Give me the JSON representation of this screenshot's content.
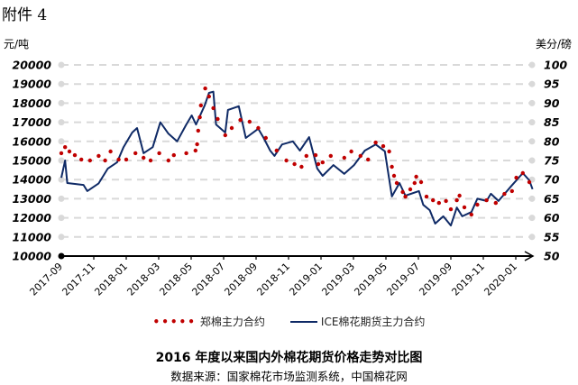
{
  "header": {
    "attachment": "附件 4"
  },
  "chart_data": {
    "type": "line",
    "title": "2016 年度以来国内外棉花期货价格走势对比图",
    "source": "数据来源：国家棉花市场监测系统，中国棉花网",
    "left_axis": {
      "unit": "元/吨",
      "range": [
        10000,
        20000
      ],
      "ticks": [
        "10000",
        "11000",
        "12000",
        "13000",
        "14000",
        "15000",
        "16000",
        "17000",
        "18000",
        "19000",
        "20000"
      ]
    },
    "right_axis": {
      "unit": "美分/磅",
      "range": [
        50,
        100
      ],
      "ticks": [
        "50",
        "55",
        "60",
        "65",
        "70",
        "75",
        "80",
        "85",
        "90",
        "95",
        "100"
      ]
    },
    "x_ticks": [
      "2017-09",
      "2017-11",
      "2018-01",
      "2018-03",
      "2018-05",
      "2018-07",
      "2018-09",
      "2018-11",
      "2019-01",
      "2019-03",
      "2019-05",
      "2019-07",
      "2019-09",
      "2019-11",
      "2020-01"
    ],
    "grid": true,
    "legend_position": "bottom",
    "series": [
      {
        "name": "郑棉主力合约",
        "axis": "left",
        "style": "dots",
        "color": "#c00000",
        "points": [
          [
            "2017-09-01",
            15380
          ],
          [
            "2017-09-08",
            15700
          ],
          [
            "2017-09-16",
            15470
          ],
          [
            "2017-09-26",
            15280
          ],
          [
            "2017-10-08",
            15050
          ],
          [
            "2017-10-24",
            15000
          ],
          [
            "2017-11-10",
            15240
          ],
          [
            "2017-11-22",
            15000
          ],
          [
            "2017-12-02",
            15470
          ],
          [
            "2017-12-17",
            15050
          ],
          [
            "2018-01-01",
            15050
          ],
          [
            "2018-01-18",
            15380
          ],
          [
            "2018-02-03",
            15140
          ],
          [
            "2018-02-16",
            15000
          ],
          [
            "2018-03-02",
            15380
          ],
          [
            "2018-03-19",
            15000
          ],
          [
            "2018-03-29",
            15280
          ],
          [
            "2018-04-22",
            15380
          ],
          [
            "2018-05-09",
            15520
          ],
          [
            "2018-05-12",
            15850
          ],
          [
            "2018-05-14",
            16560
          ],
          [
            "2018-05-17",
            17260
          ],
          [
            "2018-05-19",
            17880
          ],
          [
            "2018-05-27",
            18770
          ],
          [
            "2018-06-04",
            18350
          ],
          [
            "2018-06-12",
            17740
          ],
          [
            "2018-06-20",
            17170
          ],
          [
            "2018-07-04",
            16320
          ],
          [
            "2018-07-16",
            16700
          ],
          [
            "2018-08-02",
            17120
          ],
          [
            "2018-08-19",
            17030
          ],
          [
            "2018-09-05",
            16700
          ],
          [
            "2018-09-19",
            16180
          ],
          [
            "2018-10-09",
            15520
          ],
          [
            "2018-10-27",
            15000
          ],
          [
            "2018-11-12",
            14810
          ],
          [
            "2018-11-25",
            14670
          ],
          [
            "2018-12-04",
            15240
          ],
          [
            "2018-12-21",
            15280
          ],
          [
            "2018-12-26",
            14810
          ],
          [
            "2019-01-04",
            14900
          ],
          [
            "2019-01-19",
            15240
          ],
          [
            "2019-02-14",
            15140
          ],
          [
            "2019-02-27",
            15470
          ],
          [
            "2019-03-14",
            15240
          ],
          [
            "2019-03-28",
            15050
          ],
          [
            "2019-04-12",
            15940
          ],
          [
            "2019-04-26",
            15750
          ],
          [
            "2019-05-07",
            15470
          ],
          [
            "2019-05-12",
            14670
          ],
          [
            "2019-05-16",
            14200
          ],
          [
            "2019-05-21",
            13820
          ],
          [
            "2019-06-02",
            13350
          ],
          [
            "2019-06-07",
            13110
          ],
          [
            "2019-06-16",
            13490
          ],
          [
            "2019-06-24",
            13820
          ],
          [
            "2019-06-27",
            14150
          ],
          [
            "2019-07-06",
            13870
          ],
          [
            "2019-07-16",
            13110
          ],
          [
            "2019-07-28",
            12920
          ],
          [
            "2019-08-09",
            12780
          ],
          [
            "2019-08-22",
            12880
          ],
          [
            "2019-09-01",
            12450
          ],
          [
            "2019-09-12",
            12920
          ],
          [
            "2019-09-17",
            13160
          ],
          [
            "2019-09-26",
            12550
          ],
          [
            "2019-10-09",
            12170
          ],
          [
            "2019-10-20",
            12690
          ],
          [
            "2019-11-07",
            12920
          ],
          [
            "2019-11-24",
            12780
          ],
          [
            "2019-12-10",
            13250
          ],
          [
            "2019-12-24",
            13400
          ],
          [
            "2020-01-02",
            14100
          ],
          [
            "2020-01-14",
            14340
          ],
          [
            "2020-01-26",
            13870
          ]
        ]
      },
      {
        "name": "ICE棉花期货主力合约",
        "axis": "right",
        "style": "line",
        "color": "#0f2a66",
        "points": [
          [
            "2017-09-01",
            70.5
          ],
          [
            "2017-09-08",
            75
          ],
          [
            "2017-09-12",
            69.1
          ],
          [
            "2017-10-12",
            68.6
          ],
          [
            "2017-10-19",
            67
          ],
          [
            "2017-11-10",
            69
          ],
          [
            "2017-11-27",
            72.9
          ],
          [
            "2017-12-14",
            74.5
          ],
          [
            "2017-12-26",
            78.5
          ],
          [
            "2018-01-12",
            82.3
          ],
          [
            "2018-01-21",
            83.5
          ],
          [
            "2018-02-03",
            76.9
          ],
          [
            "2018-02-20",
            78.5
          ],
          [
            "2018-03-04",
            85
          ],
          [
            "2018-03-19",
            82
          ],
          [
            "2018-04-05",
            80
          ],
          [
            "2018-04-22",
            84.4
          ],
          [
            "2018-05-02",
            86.8
          ],
          [
            "2018-05-10",
            84.4
          ],
          [
            "2018-05-26",
            89.4
          ],
          [
            "2018-06-04",
            92.7
          ],
          [
            "2018-06-12",
            93
          ],
          [
            "2018-06-17",
            84.4
          ],
          [
            "2018-07-04",
            82.3
          ],
          [
            "2018-07-09",
            88.2
          ],
          [
            "2018-07-29",
            89.2
          ],
          [
            "2018-08-12",
            80.9
          ],
          [
            "2018-09-05",
            83.3
          ],
          [
            "2018-09-15",
            80.9
          ],
          [
            "2018-09-27",
            77.6
          ],
          [
            "2018-10-05",
            76.2
          ],
          [
            "2018-10-19",
            79.2
          ],
          [
            "2018-11-09",
            80
          ],
          [
            "2018-11-22",
            77.6
          ],
          [
            "2018-12-09",
            81.1
          ],
          [
            "2018-12-24",
            72.9
          ],
          [
            "2019-01-04",
            71
          ],
          [
            "2019-01-24",
            73.8
          ],
          [
            "2019-02-14",
            71.5
          ],
          [
            "2019-03-02",
            73.8
          ],
          [
            "2019-03-22",
            77.6
          ],
          [
            "2019-04-12",
            79.2
          ],
          [
            "2019-04-29",
            77.4
          ],
          [
            "2019-05-12",
            65.6
          ],
          [
            "2019-05-26",
            69.1
          ],
          [
            "2019-06-07",
            65.8
          ],
          [
            "2019-07-02",
            67
          ],
          [
            "2019-07-10",
            63.4
          ],
          [
            "2019-07-22",
            62
          ],
          [
            "2019-08-02",
            58.5
          ],
          [
            "2019-08-17",
            60.4
          ],
          [
            "2019-09-01",
            58
          ],
          [
            "2019-09-12",
            62.7
          ],
          [
            "2019-09-22",
            60.4
          ],
          [
            "2019-10-09",
            61.5
          ],
          [
            "2019-10-20",
            65
          ],
          [
            "2019-11-07",
            64.4
          ],
          [
            "2019-11-15",
            66.3
          ],
          [
            "2019-11-29",
            64.4
          ],
          [
            "2019-12-22",
            68.2
          ],
          [
            "2020-01-14",
            71.7
          ],
          [
            "2020-01-26",
            69.8
          ],
          [
            "2020-02-02",
            67.5
          ]
        ]
      }
    ]
  }
}
